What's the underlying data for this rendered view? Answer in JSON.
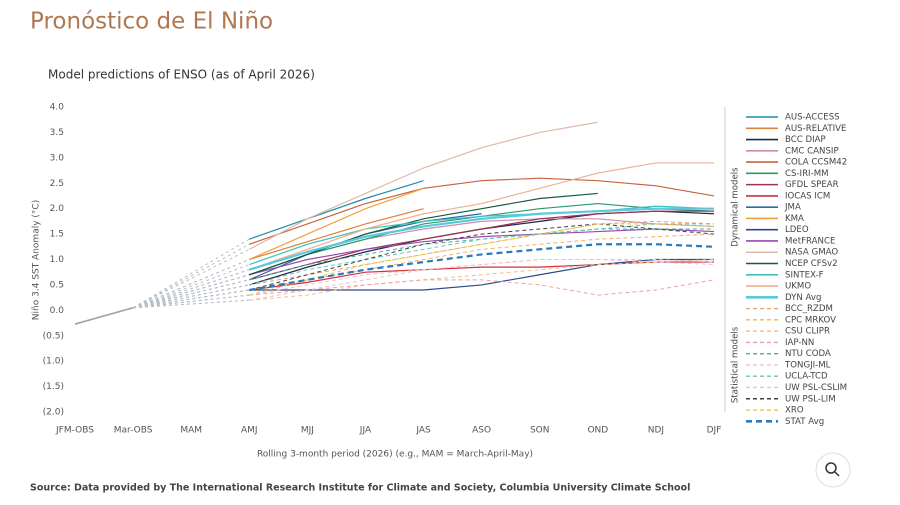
{
  "header": {
    "title": "Pronóstico de El Niño"
  },
  "chart_data": {
    "type": "line",
    "title": "Model predictions of ENSO (as of April 2026)",
    "y_label": "Niño 3.4 SST Anomaly (°C)",
    "x_label": "Rolling 3-month period (2026) (e.g., MAM = March-April-May)",
    "categories": [
      "JFM-OBS",
      "Mar-OBS",
      "MAM",
      "AMJ",
      "MJJ",
      "JJA",
      "JAS",
      "ASO",
      "SON",
      "OND",
      "NDJ",
      "DJF"
    ],
    "ylim": [
      -2,
      4
    ],
    "yticks": [
      {
        "value": 4,
        "label": "4.0"
      },
      {
        "value": 3.5,
        "label": "3.5"
      },
      {
        "value": 3,
        "label": "3.0"
      },
      {
        "value": 2.5,
        "label": "2.5"
      },
      {
        "value": 2,
        "label": "2.0"
      },
      {
        "value": 1.5,
        "label": "1.5"
      },
      {
        "value": 1,
        "label": "1.0"
      },
      {
        "value": 0.5,
        "label": "0.5"
      },
      {
        "value": 0,
        "label": "0.0"
      },
      {
        "value": -0.5,
        "label": "(0.5)"
      },
      {
        "value": -1,
        "label": "(1.0)"
      },
      {
        "value": -1.5,
        "label": "(1.5)"
      },
      {
        "value": -2,
        "label": "(2.0)"
      }
    ],
    "observed": {
      "color": "#9aa4ad",
      "values": [
        -0.27,
        0.05,
        null,
        null,
        null,
        null,
        null,
        null,
        null,
        null,
        null,
        null
      ]
    },
    "groups": [
      "Dynamical models",
      "Statistical models"
    ],
    "series": [
      {
        "name": "AUS-ACCESS",
        "color": "#1a8fa8",
        "style": "solid",
        "values": [
          null,
          null,
          null,
          1.4,
          1.8,
          2.2,
          2.55,
          null,
          null,
          null,
          null,
          null
        ]
      },
      {
        "name": "AUS-RELATIVE",
        "color": "#e0803a",
        "style": "solid",
        "values": [
          null,
          null,
          null,
          1.0,
          1.35,
          1.7,
          2.0,
          null,
          null,
          null,
          null,
          null
        ]
      },
      {
        "name": "BCC DIAP",
        "color": "#1b2a4a",
        "style": "solid",
        "values": [
          null,
          null,
          null,
          0.5,
          0.85,
          1.15,
          1.4,
          1.6,
          1.75,
          1.9,
          1.95,
          1.9
        ]
      },
      {
        "name": "CMC CANSIP",
        "color": "#c88fb0",
        "style": "solid",
        "values": [
          null,
          null,
          null,
          0.7,
          1.1,
          1.4,
          1.6,
          1.75,
          1.8,
          1.8,
          1.7,
          1.65
        ]
      },
      {
        "name": "COLA CCSM42",
        "color": "#c8643c",
        "style": "solid",
        "values": [
          null,
          null,
          null,
          1.3,
          1.7,
          2.1,
          2.4,
          2.55,
          2.6,
          2.55,
          2.45,
          2.25
        ]
      },
      {
        "name": "CS-IRI-MM",
        "color": "#2a9a6a",
        "style": "solid",
        "values": [
          null,
          null,
          null,
          0.7,
          1.1,
          1.4,
          1.7,
          1.85,
          2.0,
          2.1,
          2.0,
          1.95
        ]
      },
      {
        "name": "GFDL SPEAR",
        "color": "#a03050",
        "style": "solid",
        "values": [
          null,
          null,
          null,
          0.6,
          0.9,
          1.2,
          1.4,
          1.6,
          1.8,
          1.9,
          1.95,
          1.95
        ]
      },
      {
        "name": "IOCAS ICM",
        "color": "#d03040",
        "style": "solid",
        "values": [
          null,
          null,
          null,
          0.4,
          0.55,
          0.75,
          0.8,
          0.85,
          0.85,
          0.9,
          0.95,
          0.95
        ]
      },
      {
        "name": "JMA",
        "color": "#2a6aa8",
        "style": "solid",
        "values": [
          null,
          null,
          null,
          0.6,
          1.1,
          1.5,
          1.75,
          1.9,
          null,
          null,
          null,
          null
        ]
      },
      {
        "name": "KMA",
        "color": "#f0a040",
        "style": "solid",
        "values": [
          null,
          null,
          null,
          1.0,
          1.5,
          2.0,
          2.4,
          null,
          null,
          null,
          null,
          null
        ]
      },
      {
        "name": "LDEO",
        "color": "#2a4a8a",
        "style": "solid",
        "values": [
          null,
          null,
          null,
          0.4,
          0.4,
          0.4,
          0.4,
          0.5,
          0.7,
          0.9,
          1.0,
          1.0
        ]
      },
      {
        "name": "MetFRANCE",
        "color": "#9a4ab0",
        "style": "solid",
        "values": [
          null,
          null,
          null,
          0.7,
          1.0,
          1.2,
          1.35,
          1.45,
          1.5,
          1.55,
          1.6,
          1.55
        ]
      },
      {
        "name": "NASA GMAO",
        "color": "#e0b8a8",
        "style": "solid",
        "values": [
          null,
          null,
          null,
          1.2,
          1.8,
          2.3,
          2.8,
          3.2,
          3.5,
          3.7,
          null,
          null
        ]
      },
      {
        "name": "NCEP CFSv2",
        "color": "#1a5a3a",
        "style": "solid",
        "values": [
          null,
          null,
          null,
          0.7,
          1.1,
          1.5,
          1.8,
          2.0,
          2.2,
          2.3,
          null,
          null
        ]
      },
      {
        "name": "SINTEX-F",
        "color": "#40c0c0",
        "style": "solid",
        "values": [
          null,
          null,
          null,
          0.9,
          1.3,
          1.6,
          1.75,
          1.85,
          1.9,
          1.95,
          2.05,
          2.0
        ]
      },
      {
        "name": "UKMO",
        "color": "#f0b090",
        "style": "solid",
        "values": [
          null,
          null,
          null,
          0.8,
          1.2,
          1.6,
          1.9,
          2.1,
          2.4,
          2.7,
          2.9,
          2.9
        ]
      },
      {
        "name": "DYN Avg",
        "color": "#5ac8e0",
        "style": "thick",
        "values": [
          null,
          null,
          null,
          0.8,
          1.15,
          1.45,
          1.65,
          1.8,
          1.9,
          1.95,
          2.0,
          2.0
        ]
      },
      {
        "name": "BCC_RZDM",
        "color": "#e0a870",
        "style": "dashed",
        "values": [
          null,
          null,
          null,
          0.5,
          0.7,
          0.9,
          1.1,
          1.3,
          1.5,
          1.7,
          1.75,
          1.7
        ]
      },
      {
        "name": "CPC MRKOV",
        "color": "#f0b060",
        "style": "dashed",
        "values": [
          null,
          null,
          null,
          0.4,
          0.6,
          0.8,
          1.0,
          1.2,
          1.3,
          1.4,
          1.45,
          1.5
        ]
      },
      {
        "name": "CSU CLIPR",
        "color": "#f0c090",
        "style": "dashed",
        "values": [
          null,
          null,
          null,
          0.2,
          0.3,
          0.5,
          0.6,
          0.7,
          0.8,
          0.9,
          0.95,
          1.0
        ]
      },
      {
        "name": "IAP-NN",
        "color": "#f0a0a0",
        "style": "dashed",
        "values": [
          null,
          null,
          null,
          0.3,
          0.4,
          0.5,
          0.6,
          0.6,
          0.5,
          0.3,
          0.4,
          0.6
        ]
      },
      {
        "name": "NTU CODA",
        "color": "#40b0a0",
        "style": "dashed",
        "values": [
          null,
          null,
          null,
          0.6,
          0.9,
          1.1,
          1.3,
          1.4,
          1.5,
          1.6,
          1.6,
          1.6
        ]
      },
      {
        "name": "TONGJI-ML",
        "color": "#f0c0d0",
        "style": "dashed",
        "values": [
          null,
          null,
          null,
          0.3,
          0.5,
          0.7,
          0.8,
          0.9,
          1.0,
          1.0,
          0.95,
          0.9
        ]
      },
      {
        "name": "UCLA-TCD",
        "color": "#60c8b0",
        "style": "dashed",
        "values": [
          null,
          null,
          null,
          0.5,
          0.8,
          1.0,
          1.2,
          1.4,
          1.5,
          1.6,
          1.7,
          1.7
        ]
      },
      {
        "name": "UW PSL-CSLIM",
        "color": "#f0c0c0",
        "style": "dashed",
        "values": [
          null,
          null,
          null,
          0.2,
          0.4,
          0.6,
          0.8,
          0.9,
          1.0,
          1.0,
          1.0,
          0.95
        ]
      },
      {
        "name": "UW PSL-LIM",
        "color": "#404040",
        "style": "dashed",
        "values": [
          null,
          null,
          null,
          0.4,
          0.7,
          1.0,
          1.3,
          1.5,
          1.6,
          1.7,
          1.6,
          1.5
        ]
      },
      {
        "name": "XRO",
        "color": "#f0c040",
        "style": "dashed",
        "values": [
          null,
          null,
          null,
          0.3,
          0.6,
          0.9,
          1.1,
          1.3,
          1.5,
          1.7,
          1.7,
          1.65
        ]
      },
      {
        "name": "STAT Avg",
        "color": "#2a7ac0",
        "style": "thickdashed",
        "values": [
          null,
          null,
          null,
          0.4,
          0.6,
          0.8,
          0.95,
          1.1,
          1.2,
          1.3,
          1.3,
          1.25
        ]
      }
    ],
    "source": "Source: Data provided by The International Research Institute for Climate and Society, Columbia University Climate School"
  }
}
